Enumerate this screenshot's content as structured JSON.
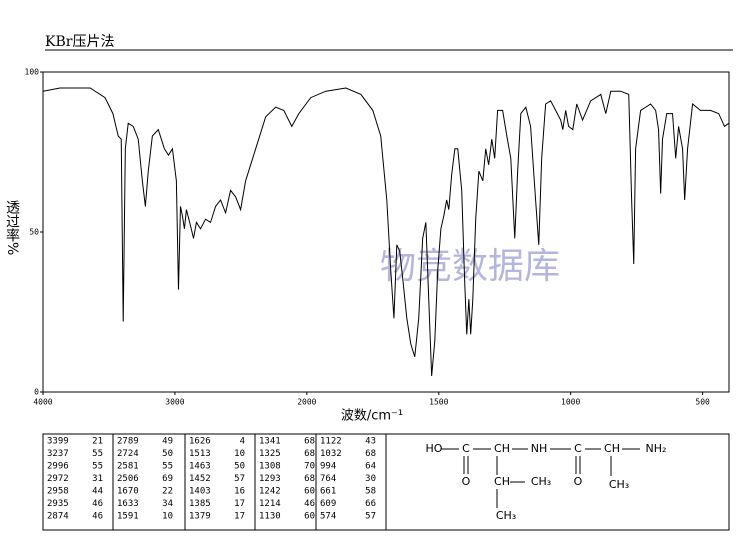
{
  "chart_data": {
    "type": "line",
    "title": "KBr压片法",
    "ylabel": "透过率%",
    "xlabel": "波数/cm⁻¹",
    "watermark": "物竞数据库",
    "xlim": [
      4000,
      400
    ],
    "xticks": [
      4000,
      3000,
      2000,
      1500,
      1000,
      500
    ],
    "ylim": [
      0,
      100
    ],
    "yticks": [
      0,
      50,
      100
    ],
    "series": [
      {
        "color": "#000000",
        "x": [
          4000,
          3871,
          3643,
          3530,
          3470,
          3430,
          3407,
          3392,
          3376,
          3354,
          3316,
          3278,
          3247,
          3224,
          3202,
          3171,
          3126,
          3080,
          3049,
          3019,
          2989,
          2973,
          2958,
          2943,
          2928,
          2913,
          2882,
          2859,
          2837,
          2806,
          2768,
          2730,
          2692,
          2654,
          2616,
          2578,
          2540,
          2502,
          2464,
          2388,
          2312,
          2236,
          2175,
          2114,
          2061,
          1985,
          1928,
          1852,
          1795,
          1750,
          1720,
          1697,
          1682,
          1670,
          1659,
          1648,
          1636,
          1621,
          1606,
          1591,
          1576,
          1561,
          1549,
          1538,
          1527,
          1515,
          1504,
          1492,
          1481,
          1470,
          1462,
          1451,
          1439,
          1428,
          1413,
          1402,
          1394,
          1386,
          1379,
          1371,
          1360,
          1348,
          1333,
          1322,
          1311,
          1299,
          1288,
          1277,
          1258,
          1242,
          1227,
          1212,
          1201,
          1189,
          1170,
          1152,
          1133,
          1121,
          1110,
          1095,
          1076,
          1057,
          1038,
          1030,
          1019,
          1008,
          992,
          977,
          955,
          924,
          886,
          867,
          848,
          811,
          780,
          769,
          761,
          754,
          735,
          697,
          678,
          667,
          659,
          652,
          636,
          614,
          602,
          591,
          576,
          568,
          557,
          538,
          508,
          470,
          439,
          417,
          400
        ],
        "values": [
          94,
          95,
          95,
          92,
          87,
          80,
          79,
          22,
          76,
          84,
          83,
          79,
          66,
          58,
          69,
          80,
          82,
          76,
          74,
          76,
          66,
          32,
          58,
          55,
          51,
          57,
          52,
          48,
          53,
          51,
          54,
          53,
          58,
          60,
          56,
          63,
          61,
          57,
          66,
          76,
          86,
          89,
          88,
          83,
          87,
          92,
          94,
          95,
          93,
          88,
          80,
          60,
          38,
          23,
          46,
          44,
          35,
          23,
          15,
          11,
          23,
          48,
          53,
          29,
          5,
          16,
          38,
          51,
          55,
          60,
          57,
          68,
          76,
          76,
          63,
          35,
          18,
          29,
          18,
          29,
          54,
          69,
          66,
          76,
          71,
          79,
          73,
          88,
          88,
          80,
          73,
          48,
          69,
          87,
          89,
          83,
          60,
          46,
          73,
          90,
          91,
          88,
          85,
          82,
          88,
          83,
          82,
          90,
          85,
          91,
          93,
          87,
          94,
          94,
          93,
          60,
          40,
          76,
          88,
          90,
          88,
          82,
          62,
          79,
          87,
          87,
          73,
          83,
          76,
          60,
          76,
          90,
          88,
          88,
          87,
          83,
          84
        ]
      }
    ]
  },
  "peak_table": [
    [
      [
        "3399",
        "21"
      ],
      [
        "3237",
        "55"
      ],
      [
        "2996",
        "55"
      ],
      [
        "2972",
        "31"
      ],
      [
        "2958",
        "44"
      ],
      [
        "2935",
        "46"
      ],
      [
        "2874",
        "46"
      ]
    ],
    [
      [
        "2789",
        "49"
      ],
      [
        "2724",
        "50"
      ],
      [
        "2581",
        "55"
      ],
      [
        "2506",
        "69"
      ],
      [
        "1670",
        "22"
      ],
      [
        "1633",
        "34"
      ],
      [
        "1591",
        "10"
      ]
    ],
    [
      [
        "1626",
        "4"
      ],
      [
        "1513",
        "10"
      ],
      [
        "1463",
        "50"
      ],
      [
        "1452",
        "57"
      ],
      [
        "1403",
        "16"
      ],
      [
        "1385",
        "17"
      ],
      [
        "1379",
        "17"
      ]
    ],
    [
      [
        "1341",
        "68"
      ],
      [
        "1325",
        "68"
      ],
      [
        "1308",
        "70"
      ],
      [
        "1293",
        "68"
      ],
      [
        "1242",
        "60"
      ],
      [
        "1214",
        "46"
      ],
      [
        "1130",
        "60"
      ]
    ],
    [
      [
        "1122",
        "43"
      ],
      [
        "1032",
        "68"
      ],
      [
        "994",
        "64"
      ],
      [
        "764",
        "30"
      ],
      [
        "661",
        "58"
      ],
      [
        "609",
        "66"
      ],
      [
        "574",
        "57"
      ]
    ]
  ],
  "structure": {
    "labels": [
      "HO",
      "C",
      "CH",
      "NH",
      "C",
      "CH",
      "NH₂",
      "O",
      "CH",
      "CH₃",
      "O",
      "CH₃",
      "CH₃"
    ]
  }
}
